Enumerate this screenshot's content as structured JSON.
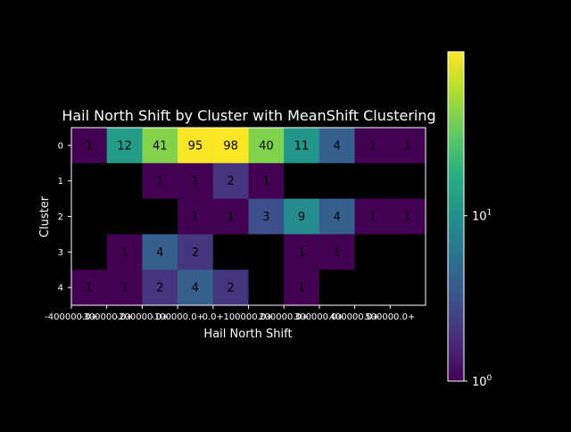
{
  "chart_data": {
    "type": "heatmap",
    "title": "Hail North Shift by Cluster with MeanShift Clustering",
    "xlabel": "Hail North Shift",
    "ylabel": "Cluster",
    "x_categories": [
      "-400000.0+",
      "-300000.0+",
      "-200000.0+",
      "-100000.0+",
      "0.0+",
      "100000.0+",
      "200000.0+",
      "300000.0+",
      "400000.0+",
      "500000.0+"
    ],
    "y_categories": [
      "0",
      "1",
      "2",
      "3",
      "4"
    ],
    "values": [
      [
        1,
        12,
        41,
        95,
        98,
        40,
        11,
        4,
        1,
        1
      ],
      [
        null,
        null,
        1,
        1,
        2,
        1,
        null,
        null,
        null,
        null
      ],
      [
        null,
        null,
        null,
        1,
        1,
        3,
        9,
        4,
        1,
        1
      ],
      [
        null,
        1,
        4,
        2,
        null,
        null,
        1,
        1,
        null,
        null
      ],
      [
        1,
        1,
        2,
        4,
        2,
        null,
        1,
        null,
        null,
        null
      ]
    ],
    "colorbar": {
      "scale": "log",
      "range": [
        1,
        98
      ],
      "colormap": "viridis",
      "ticks": [
        {
          "value": 1,
          "base": "10",
          "exp": "0"
        },
        {
          "value": 10,
          "base": "10",
          "exp": "1"
        }
      ]
    },
    "colors": {
      "background": "#000000",
      "text": "#ffffff",
      "cell_text": "#000000",
      "empty_cell": "#000000"
    }
  }
}
